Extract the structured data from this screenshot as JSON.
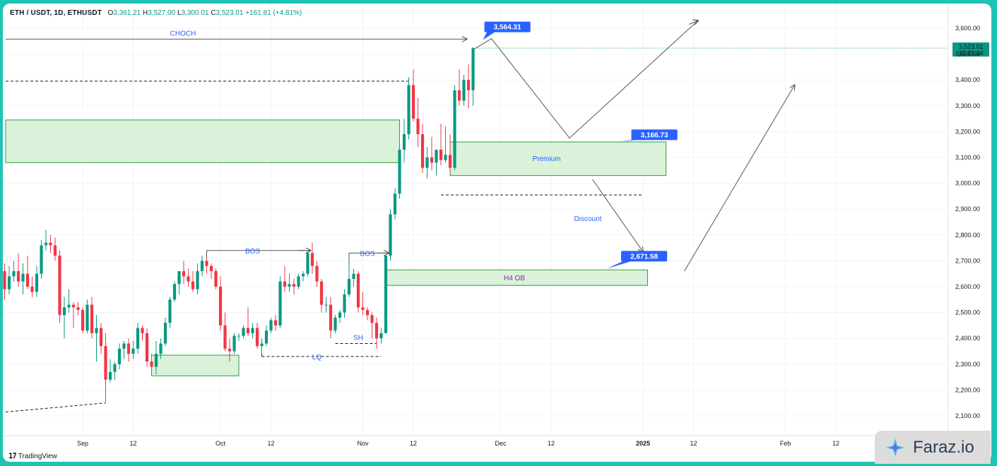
{
  "header": {
    "symbol": "ETH / USDT, 1D, ETHUSDT",
    "open_label": "O",
    "open": "3,361.21",
    "high_label": "H",
    "high": "3,527.00",
    "low_label": "L",
    "low": "3,300.01",
    "close_label": "C",
    "close": "3,523.01",
    "change": "+161.81 (+4.81%)"
  },
  "price_badge": {
    "price": "3,523.01",
    "timer": "13:21:14"
  },
  "branding": {
    "tradingview": "TradingView",
    "watermark": "Faraz.io"
  },
  "colors": {
    "up": "#089981",
    "down": "#f23645",
    "zone_fill": "#d6f0d6",
    "zone_border": "#2e9e3e",
    "callout": "#2962ff",
    "annotation": "#2962ff"
  },
  "chart_data": {
    "type": "candlestick",
    "y_ticks": [
      "3,600.00",
      "3,500.00",
      "3,400.00",
      "3,300.00",
      "3,200.00",
      "3,100.00",
      "3,000.00",
      "2,900.00",
      "2,800.00",
      "2,700.00",
      "2,600.00",
      "2,500.00",
      "2,400.00",
      "2,300.00",
      "2,200.00",
      "2,100.00"
    ],
    "x_ticks": [
      {
        "label": "Sep",
        "date": "2024-09-01"
      },
      {
        "label": "12",
        "date": "2024-09-12"
      },
      {
        "label": "Oct",
        "date": "2024-10-01"
      },
      {
        "label": "12",
        "date": "2024-10-12"
      },
      {
        "label": "Nov",
        "date": "2024-11-01"
      },
      {
        "label": "12",
        "date": "2024-11-12"
      },
      {
        "label": "Dec",
        "date": "2024-12-01"
      },
      {
        "label": "12",
        "date": "2024-12-12"
      },
      {
        "label": "2025",
        "date": "2025-01-01"
      },
      {
        "label": "12",
        "date": "2025-01-12"
      },
      {
        "label": "Feb",
        "date": "2025-02-01"
      },
      {
        "label": "12",
        "date": "2025-02-12"
      }
    ],
    "ylim": [
      2090,
      3650
    ],
    "xlim": [
      "2024-08-12",
      "2025-02-28"
    ],
    "candles": [
      [
        "2024-08-13",
        2640,
        2700,
        2560,
        2680
      ],
      [
        "2024-08-14",
        2680,
        2720,
        2600,
        2660
      ],
      [
        "2024-08-15",
        2660,
        2690,
        2550,
        2590
      ],
      [
        "2024-08-16",
        2590,
        2680,
        2570,
        2640
      ],
      [
        "2024-08-17",
        2640,
        2700,
        2620,
        2660
      ],
      [
        "2024-08-18",
        2660,
        2730,
        2600,
        2620
      ],
      [
        "2024-08-19",
        2620,
        2690,
        2570,
        2650
      ],
      [
        "2024-08-20",
        2650,
        2720,
        2590,
        2600
      ],
      [
        "2024-08-21",
        2600,
        2640,
        2560,
        2580
      ],
      [
        "2024-08-22",
        2580,
        2680,
        2560,
        2650
      ],
      [
        "2024-08-23",
        2650,
        2780,
        2630,
        2760
      ],
      [
        "2024-08-24",
        2760,
        2820,
        2740,
        2770
      ],
      [
        "2024-08-25",
        2770,
        2800,
        2730,
        2760
      ],
      [
        "2024-08-26",
        2760,
        2790,
        2700,
        2720
      ],
      [
        "2024-08-27",
        2720,
        2740,
        2460,
        2490
      ],
      [
        "2024-08-28",
        2490,
        2560,
        2400,
        2520
      ],
      [
        "2024-08-29",
        2520,
        2590,
        2500,
        2530
      ],
      [
        "2024-08-30",
        2530,
        2540,
        2440,
        2520
      ],
      [
        "2024-08-31",
        2520,
        2540,
        2490,
        2510
      ],
      [
        "2024-09-01",
        2510,
        2520,
        2420,
        2430
      ],
      [
        "2024-09-02",
        2430,
        2550,
        2420,
        2530
      ],
      [
        "2024-09-03",
        2530,
        2560,
        2400,
        2420
      ],
      [
        "2024-09-04",
        2420,
        2490,
        2310,
        2440
      ],
      [
        "2024-09-05",
        2440,
        2460,
        2340,
        2370
      ],
      [
        "2024-09-06",
        2370,
        2420,
        2150,
        2240
      ],
      [
        "2024-09-07",
        2240,
        2320,
        2230,
        2270
      ],
      [
        "2024-09-08",
        2270,
        2310,
        2240,
        2300
      ],
      [
        "2024-09-09",
        2300,
        2380,
        2280,
        2360
      ],
      [
        "2024-09-10",
        2360,
        2390,
        2320,
        2380
      ],
      [
        "2024-09-11",
        2380,
        2400,
        2310,
        2340
      ],
      [
        "2024-09-12",
        2340,
        2390,
        2320,
        2360
      ],
      [
        "2024-09-13",
        2360,
        2460,
        2340,
        2440
      ],
      [
        "2024-09-14",
        2440,
        2450,
        2390,
        2420
      ],
      [
        "2024-09-15",
        2420,
        2440,
        2290,
        2310
      ],
      [
        "2024-09-16",
        2310,
        2340,
        2260,
        2290
      ],
      [
        "2024-09-17",
        2290,
        2390,
        2260,
        2340
      ],
      [
        "2024-09-18",
        2340,
        2400,
        2320,
        2380
      ],
      [
        "2024-09-19",
        2380,
        2480,
        2370,
        2460
      ],
      [
        "2024-09-20",
        2460,
        2560,
        2440,
        2550
      ],
      [
        "2024-09-21",
        2550,
        2620,
        2540,
        2610
      ],
      [
        "2024-09-22",
        2610,
        2660,
        2570,
        2660
      ],
      [
        "2024-09-23",
        2660,
        2700,
        2610,
        2640
      ],
      [
        "2024-09-24",
        2640,
        2670,
        2600,
        2620
      ],
      [
        "2024-09-25",
        2620,
        2660,
        2580,
        2590
      ],
      [
        "2024-09-26",
        2590,
        2690,
        2570,
        2660
      ],
      [
        "2024-09-27",
        2660,
        2720,
        2640,
        2700
      ],
      [
        "2024-09-28",
        2700,
        2710,
        2650,
        2680
      ],
      [
        "2024-09-29",
        2680,
        2690,
        2630,
        2660
      ],
      [
        "2024-09-30",
        2660,
        2670,
        2590,
        2600
      ],
      [
        "2024-10-01",
        2600,
        2640,
        2430,
        2450
      ],
      [
        "2024-10-02",
        2450,
        2500,
        2350,
        2360
      ],
      [
        "2024-10-03",
        2360,
        2400,
        2310,
        2350
      ],
      [
        "2024-10-04",
        2350,
        2420,
        2340,
        2410
      ],
      [
        "2024-10-05",
        2410,
        2420,
        2390,
        2410
      ],
      [
        "2024-10-06",
        2410,
        2450,
        2400,
        2440
      ],
      [
        "2024-10-07",
        2440,
        2520,
        2410,
        2420
      ],
      [
        "2024-10-08",
        2420,
        2460,
        2400,
        2440
      ],
      [
        "2024-10-09",
        2440,
        2460,
        2360,
        2370
      ],
      [
        "2024-10-10",
        2370,
        2400,
        2340,
        2380
      ],
      [
        "2024-10-11",
        2380,
        2450,
        2370,
        2430
      ],
      [
        "2024-10-12",
        2430,
        2480,
        2420,
        2470
      ],
      [
        "2024-10-13",
        2470,
        2490,
        2430,
        2450
      ],
      [
        "2024-10-14",
        2450,
        2640,
        2440,
        2620
      ],
      [
        "2024-10-15",
        2620,
        2680,
        2580,
        2600
      ],
      [
        "2024-10-16",
        2600,
        2650,
        2580,
        2610
      ],
      [
        "2024-10-17",
        2610,
        2630,
        2570,
        2600
      ],
      [
        "2024-10-18",
        2600,
        2650,
        2590,
        2640
      ],
      [
        "2024-10-19",
        2640,
        2660,
        2620,
        2650
      ],
      [
        "2024-10-20",
        2650,
        2740,
        2640,
        2730
      ],
      [
        "2024-10-21",
        2730,
        2770,
        2650,
        2680
      ],
      [
        "2024-10-22",
        2680,
        2700,
        2600,
        2620
      ],
      [
        "2024-10-23",
        2620,
        2630,
        2500,
        2530
      ],
      [
        "2024-10-24",
        2530,
        2560,
        2500,
        2530
      ],
      [
        "2024-10-25",
        2530,
        2560,
        2400,
        2430
      ],
      [
        "2024-10-26",
        2430,
        2490,
        2420,
        2480
      ],
      [
        "2024-10-27",
        2480,
        2510,
        2460,
        2500
      ],
      [
        "2024-10-28",
        2500,
        2590,
        2480,
        2570
      ],
      [
        "2024-10-29",
        2570,
        2680,
        2560,
        2630
      ],
      [
        "2024-10-30",
        2630,
        2670,
        2600,
        2650
      ],
      [
        "2024-10-31",
        2650,
        2660,
        2500,
        2520
      ],
      [
        "2024-11-01",
        2520,
        2580,
        2490,
        2510
      ],
      [
        "2024-11-02",
        2510,
        2520,
        2470,
        2490
      ],
      [
        "2024-11-03",
        2490,
        2500,
        2400,
        2460
      ],
      [
        "2024-11-04",
        2460,
        2480,
        2360,
        2400
      ],
      [
        "2024-11-05",
        2400,
        2440,
        2380,
        2420
      ],
      [
        "2024-11-06",
        2420,
        2720,
        2420,
        2720
      ],
      [
        "2024-11-07",
        2720,
        2900,
        2700,
        2880
      ],
      [
        "2024-11-08",
        2880,
        2980,
        2860,
        2960
      ],
      [
        "2024-11-09",
        2960,
        3140,
        2940,
        3130
      ],
      [
        "2024-11-10",
        3130,
        3250,
        3080,
        3190
      ],
      [
        "2024-11-11",
        3190,
        3410,
        3170,
        3380
      ],
      [
        "2024-11-12",
        3380,
        3440,
        3240,
        3250
      ],
      [
        "2024-11-13",
        3250,
        3330,
        3140,
        3190
      ],
      [
        "2024-11-14",
        3190,
        3230,
        3040,
        3060
      ],
      [
        "2024-11-15",
        3060,
        3140,
        3020,
        3100
      ],
      [
        "2024-11-16",
        3100,
        3180,
        3050,
        3080
      ],
      [
        "2024-11-17",
        3080,
        3130,
        3030,
        3130
      ],
      [
        "2024-11-18",
        3130,
        3230,
        3070,
        3090
      ],
      [
        "2024-11-19",
        3090,
        3220,
        3080,
        3110
      ],
      [
        "2024-11-20",
        3110,
        3190,
        3040,
        3060
      ],
      [
        "2024-11-21",
        3060,
        3380,
        3050,
        3360
      ],
      [
        "2024-11-22",
        3360,
        3440,
        3300,
        3320
      ],
      [
        "2024-11-23",
        3320,
        3420,
        3300,
        3400
      ],
      [
        "2024-11-24",
        3400,
        3460,
        3290,
        3360
      ],
      [
        "2024-11-25",
        3360,
        3527,
        3300,
        3523.01
      ]
    ],
    "annotations": {
      "choch": "CHOCH",
      "bos_1": "BOS",
      "bos_2": "BOS",
      "sh": "SH",
      "lq": "LQ",
      "premium": "Premium",
      "discount": "Discount",
      "h4_ob": "H4 OB",
      "callout_1": "3,564.31",
      "callout_2": "3,166.73",
      "callout_3": "2,671.58"
    }
  }
}
